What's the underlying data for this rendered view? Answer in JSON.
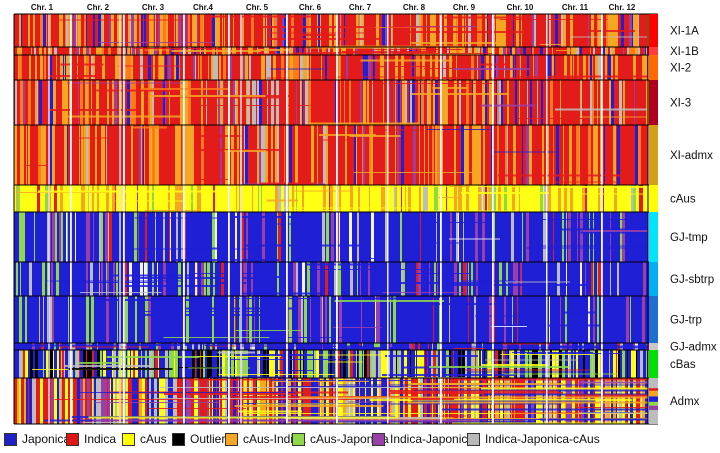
{
  "chromosomes": [
    "Chr. 1",
    "Chr. 2",
    "Chr. 3",
    "Chr.4",
    "Chr. 5",
    "Chr. 6",
    "Chr. 7",
    "Chr. 8",
    "Chr. 9",
    "Chr. 10",
    "Chr. 11",
    "Chr. 12"
  ],
  "groups": [
    {
      "label": "XI-1A",
      "color": "#ff0000",
      "kind": "ind"
    },
    {
      "label": "XI-1B",
      "color": "#ff3b3b",
      "kind": "ind"
    },
    {
      "label": "XI-2",
      "color": "#ff6a00",
      "kind": "ind"
    },
    {
      "label": "XI-3",
      "color": "#b00020",
      "kind": "ind"
    },
    {
      "label": "XI-admx",
      "color": "#d4a017",
      "kind": "ind"
    },
    {
      "label": "cAus",
      "color": "#ffff00",
      "kind": "aus"
    },
    {
      "label": "GJ-tmp",
      "color": "#00e5ff",
      "kind": "jap"
    },
    {
      "label": "GJ-sbtrp",
      "color": "#00b0f0",
      "kind": "jap"
    },
    {
      "label": "GJ-trp",
      "color": "#1f6fd0",
      "kind": "jap"
    },
    {
      "label": "GJ-admx",
      "color": "#c8c8c8",
      "kind": "jap"
    },
    {
      "label": "cBas",
      "color": "#00e000",
      "kind": "bas"
    },
    {
      "label": "Admx",
      "color": "#bdbdbd",
      "kind": "admx"
    }
  ],
  "legend": [
    {
      "label": "Japonica",
      "color": "#2020c8"
    },
    {
      "label": "Indica",
      "color": "#e01515"
    },
    {
      "label": "cAus",
      "color": "#ffff00"
    },
    {
      "label": "Outlier",
      "color": "#000000"
    },
    {
      "label": "cAus-Indica",
      "color": "#f5a623"
    },
    {
      "label": "cAus-Japonica",
      "color": "#8ed84a"
    },
    {
      "label": "Indica-Japonica",
      "color": "#9b3fa8"
    },
    {
      "label": "Indica-Japonica-cAus",
      "color": "#b8b8b8"
    }
  ]
}
